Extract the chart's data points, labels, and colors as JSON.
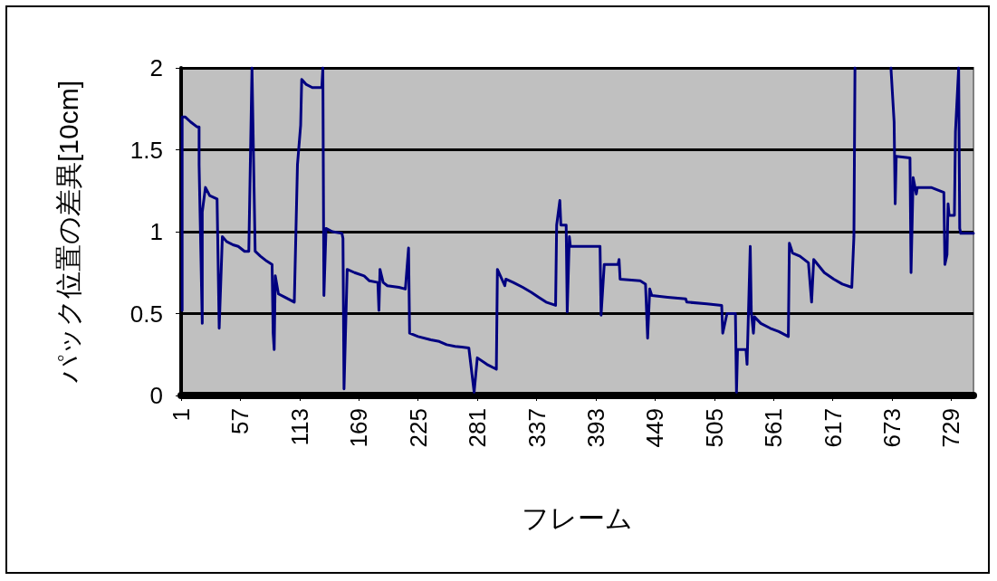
{
  "chart_data": {
    "type": "line",
    "xlabel": "フレーム",
    "ylabel": "パック位置の差異[10cm]",
    "x": [
      2,
      2,
      5,
      10,
      16,
      18,
      18,
      21,
      21,
      24,
      28,
      35,
      37,
      40,
      44,
      50,
      55,
      61,
      65,
      68,
      71,
      76,
      82,
      87,
      88,
      89,
      90,
      93,
      99,
      108,
      111,
      114,
      115,
      119,
      125,
      134,
      135,
      136,
      138,
      144,
      153,
      154,
      155,
      158,
      165,
      174,
      179,
      187,
      188,
      189,
      192,
      196,
      207,
      213,
      216,
      217,
      225,
      237,
      245,
      252,
      260,
      273,
      278,
      281,
      290,
      299,
      300,
      307,
      308,
      315,
      324,
      332,
      339,
      346,
      355,
      356,
      359,
      360,
      365,
      366,
      368,
      369,
      397,
      398,
      401,
      414,
      415,
      416,
      435,
      440,
      442,
      444,
      446,
      461,
      478,
      479,
      498,
      512,
      513,
      517,
      525,
      526,
      527,
      535,
      536,
      539,
      540,
      542,
      543,
      549,
      558,
      566,
      575,
      576,
      579,
      586,
      594,
      597,
      599,
      609,
      618,
      626,
      635,
      637,
      638,
      650,
      672,
      675,
      676,
      677,
      690,
      691,
      693,
      696,
      697,
      710,
      722,
      723,
      725,
      726,
      727,
      732,
      733,
      736,
      737,
      738,
      750
    ],
    "series": [
      {
        "color": "#000080",
        "values": [
          0.52,
          1.7,
          1.7,
          1.67,
          1.64,
          1.64,
          1.41,
          0.44,
          1.12,
          1.27,
          1.22,
          1.2,
          0.41,
          0.97,
          0.94,
          0.92,
          0.91,
          0.88,
          0.88,
          2,
          0.88,
          0.85,
          0.82,
          0.8,
          0.38,
          0.28,
          0.73,
          0.62,
          0.6,
          0.57,
          1.41,
          1.65,
          1.93,
          1.9,
          1.88,
          1.88,
          2,
          0.61,
          1.02,
          1.0,
          0.99,
          0.96,
          0.04,
          0.77,
          0.75,
          0.73,
          0.7,
          0.69,
          0.52,
          0.77,
          0.69,
          0.67,
          0.66,
          0.65,
          0.9,
          0.38,
          0.36,
          0.34,
          0.33,
          0.31,
          0.3,
          0.29,
          0.02,
          0.23,
          0.19,
          0.16,
          0.77,
          0.67,
          0.71,
          0.69,
          0.66,
          0.63,
          0.6,
          0.57,
          0.55,
          1.04,
          1.19,
          1.04,
          1.04,
          0.51,
          0.97,
          0.91,
          0.91,
          0.49,
          0.8,
          0.8,
          0.83,
          0.71,
          0.7,
          0.68,
          0.35,
          0.65,
          0.61,
          0.6,
          0.59,
          0.57,
          0.56,
          0.55,
          0.38,
          0.5,
          0.5,
          0.02,
          0.28,
          0.28,
          0.19,
          0.91,
          0.51,
          0.38,
          0.48,
          0.44,
          0.41,
          0.39,
          0.36,
          0.93,
          0.87,
          0.85,
          0.81,
          0.57,
          0.83,
          0.75,
          0.71,
          0.68,
          0.66,
          0.97,
          2,
          null,
          2,
          1.67,
          1.17,
          1.46,
          1.45,
          0.75,
          1.33,
          1.23,
          1.27,
          1.27,
          1.24,
          0.8,
          0.86,
          1.17,
          1.1,
          1.1,
          1.61,
          2,
          1.02,
          0.99,
          0.99
        ]
      }
    ],
    "xlim": [
      1,
      750
    ],
    "xticks": [
      1,
      57,
      113,
      169,
      225,
      281,
      337,
      393,
      449,
      505,
      561,
      617,
      673,
      729
    ],
    "ylim": [
      0,
      2
    ],
    "yticks": [
      0,
      0.5,
      1,
      1.5,
      2
    ],
    "grid": "y",
    "marker": "none",
    "line_style": "solid"
  }
}
